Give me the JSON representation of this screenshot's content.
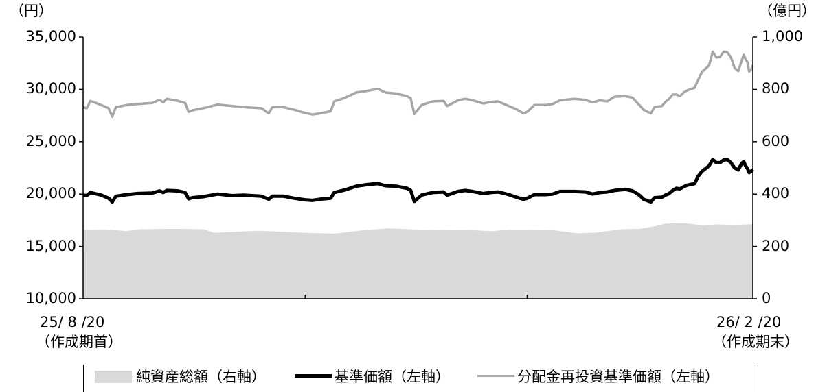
{
  "chart_data": {
    "type": "line",
    "left_unit_label": "（円）",
    "right_unit_label": "（億円）",
    "left_axis": {
      "ylim": [
        10000,
        35000
      ],
      "ticks": [
        10000,
        15000,
        20000,
        25000,
        30000,
        35000
      ],
      "tick_labels": [
        "10,000",
        "15,000",
        "20,000",
        "25,000",
        "30,000",
        "35,000"
      ]
    },
    "right_axis": {
      "ylim": [
        0,
        1000
      ],
      "ticks": [
        0,
        200,
        400,
        600,
        800,
        1000
      ],
      "tick_labels": [
        "0",
        "200",
        "400",
        "600",
        "800",
        "1,000"
      ]
    },
    "x_start": {
      "date": "25/ 8 /20",
      "note": "（作成期首）"
    },
    "x_end": {
      "date": "26/ 2 /20",
      "note": "（作成期末）"
    },
    "x_range": [
      "2025-08-20",
      "2026-02-20"
    ],
    "x_minor_ticks": [
      "2025-10-20",
      "2025-12-20"
    ],
    "grid": false,
    "legend_position": "bottom",
    "series": [
      {
        "name": "純資産総額（右軸）",
        "axis": "right",
        "style": "area",
        "color": "#d9d9d9",
        "points": [
          [
            "2025-08-20",
            262
          ],
          [
            "2025-08-25",
            265
          ],
          [
            "2025-09-01",
            259
          ],
          [
            "2025-09-05",
            266
          ],
          [
            "2025-09-15",
            267
          ],
          [
            "2025-09-22",
            266
          ],
          [
            "2025-09-25",
            252
          ],
          [
            "2025-10-01",
            256
          ],
          [
            "2025-10-07",
            260
          ],
          [
            "2025-10-14",
            256
          ],
          [
            "2025-10-20",
            252
          ],
          [
            "2025-10-28",
            249
          ],
          [
            "2025-11-05",
            262
          ],
          [
            "2025-11-12",
            269
          ],
          [
            "2025-11-17",
            266
          ],
          [
            "2025-11-23",
            262
          ],
          [
            "2025-11-28",
            263
          ],
          [
            "2025-12-05",
            262
          ],
          [
            "2025-12-10",
            258
          ],
          [
            "2025-12-15",
            264
          ],
          [
            "2025-12-20",
            264
          ],
          [
            "2025-12-27",
            262
          ],
          [
            "2026-01-03",
            250
          ],
          [
            "2026-01-08",
            253
          ],
          [
            "2026-01-15",
            266
          ],
          [
            "2026-01-20",
            267
          ],
          [
            "2026-01-24",
            277
          ],
          [
            "2026-01-27",
            287
          ],
          [
            "2026-02-01",
            289
          ],
          [
            "2026-02-06",
            281
          ],
          [
            "2026-02-10",
            284
          ],
          [
            "2026-02-15",
            282
          ],
          [
            "2026-02-20",
            285
          ]
        ]
      },
      {
        "name": "基準価額（左軸）",
        "axis": "left",
        "style": "line",
        "color": "#000000",
        "points": [
          [
            "2025-08-20",
            19900
          ],
          [
            "2025-08-21",
            19850
          ],
          [
            "2025-08-22",
            20150
          ],
          [
            "2025-08-25",
            19900
          ],
          [
            "2025-08-27",
            19600
          ],
          [
            "2025-08-28",
            19250
          ],
          [
            "2025-08-29",
            19800
          ],
          [
            "2025-09-01",
            19950
          ],
          [
            "2025-09-04",
            20050
          ],
          [
            "2025-09-08",
            20100
          ],
          [
            "2025-09-10",
            20300
          ],
          [
            "2025-09-11",
            20150
          ],
          [
            "2025-09-12",
            20350
          ],
          [
            "2025-09-15",
            20300
          ],
          [
            "2025-09-17",
            20150
          ],
          [
            "2025-09-18",
            19550
          ],
          [
            "2025-09-19",
            19650
          ],
          [
            "2025-09-22",
            19750
          ],
          [
            "2025-09-26",
            20000
          ],
          [
            "2025-09-30",
            19850
          ],
          [
            "2025-10-03",
            19900
          ],
          [
            "2025-10-08",
            19800
          ],
          [
            "2025-10-10",
            19500
          ],
          [
            "2025-10-11",
            19800
          ],
          [
            "2025-10-14",
            19800
          ],
          [
            "2025-10-17",
            19600
          ],
          [
            "2025-10-20",
            19450
          ],
          [
            "2025-10-22",
            19400
          ],
          [
            "2025-10-24",
            19500
          ],
          [
            "2025-10-27",
            19600
          ],
          [
            "2025-10-28",
            20150
          ],
          [
            "2025-10-31",
            20400
          ],
          [
            "2025-11-03",
            20750
          ],
          [
            "2025-11-06",
            20900
          ],
          [
            "2025-11-09",
            21000
          ],
          [
            "2025-11-11",
            20800
          ],
          [
            "2025-11-14",
            20750
          ],
          [
            "2025-11-17",
            20550
          ],
          [
            "2025-11-18",
            20350
          ],
          [
            "2025-11-19",
            19300
          ],
          [
            "2025-11-21",
            19900
          ],
          [
            "2025-11-24",
            20150
          ],
          [
            "2025-11-27",
            20200
          ],
          [
            "2025-11-28",
            19900
          ],
          [
            "2025-12-01",
            20250
          ],
          [
            "2025-12-03",
            20350
          ],
          [
            "2025-12-05",
            20250
          ],
          [
            "2025-12-08",
            20050
          ],
          [
            "2025-12-10",
            20150
          ],
          [
            "2025-12-12",
            20200
          ],
          [
            "2025-12-15",
            19950
          ],
          [
            "2025-12-17",
            19700
          ],
          [
            "2025-12-19",
            19500
          ],
          [
            "2025-12-20",
            19600
          ],
          [
            "2025-12-22",
            19950
          ],
          [
            "2025-12-25",
            19950
          ],
          [
            "2025-12-27",
            20000
          ],
          [
            "2025-12-29",
            20250
          ],
          [
            "2026-01-02",
            20250
          ],
          [
            "2026-01-05",
            20200
          ],
          [
            "2026-01-07",
            20000
          ],
          [
            "2026-01-09",
            20150
          ],
          [
            "2026-01-11",
            20200
          ],
          [
            "2026-01-13",
            20350
          ],
          [
            "2026-01-16",
            20450
          ],
          [
            "2026-01-18",
            20300
          ],
          [
            "2026-01-19",
            20100
          ],
          [
            "2026-01-20",
            19850
          ],
          [
            "2026-01-21",
            19500
          ],
          [
            "2026-01-23",
            19250
          ],
          [
            "2026-01-24",
            19650
          ],
          [
            "2026-01-26",
            19700
          ],
          [
            "2026-01-27",
            19900
          ],
          [
            "2026-01-28",
            20050
          ],
          [
            "2026-01-29",
            20350
          ],
          [
            "2026-01-30",
            20550
          ],
          [
            "2026-01-31",
            20500
          ],
          [
            "2026-02-01",
            20700
          ],
          [
            "2026-02-02",
            20850
          ],
          [
            "2026-02-04",
            21000
          ],
          [
            "2026-02-05",
            21700
          ],
          [
            "2026-02-06",
            22150
          ],
          [
            "2026-02-08",
            22700
          ],
          [
            "2026-02-09",
            23300
          ],
          [
            "2026-02-10",
            23000
          ],
          [
            "2026-02-11",
            23000
          ],
          [
            "2026-02-12",
            23250
          ],
          [
            "2026-02-13",
            23300
          ],
          [
            "2026-02-14",
            23000
          ],
          [
            "2026-02-15",
            22500
          ],
          [
            "2026-02-16",
            22300
          ],
          [
            "2026-02-17",
            22950
          ],
          [
            "2026-02-17T12:00",
            23100
          ],
          [
            "2026-02-18",
            22700
          ],
          [
            "2026-02-18T12:00",
            22450
          ],
          [
            "2026-02-19",
            22050
          ],
          [
            "2026-02-19T12:00",
            22150
          ],
          [
            "2026-02-20",
            22350
          ]
        ]
      },
      {
        "name": "分配金再投資基準価額（左軸）",
        "axis": "left",
        "style": "line",
        "color": "#a6a6a6",
        "points": [
          [
            "2025-08-20",
            28300
          ],
          [
            "2025-08-21",
            28200
          ],
          [
            "2025-08-22",
            28900
          ],
          [
            "2025-08-25",
            28500
          ],
          [
            "2025-08-27",
            28200
          ],
          [
            "2025-08-28",
            27400
          ],
          [
            "2025-08-29",
            28300
          ],
          [
            "2025-09-01",
            28500
          ],
          [
            "2025-09-04",
            28600
          ],
          [
            "2025-09-08",
            28700
          ],
          [
            "2025-09-10",
            29000
          ],
          [
            "2025-09-11",
            28750
          ],
          [
            "2025-09-12",
            29100
          ],
          [
            "2025-09-15",
            28900
          ],
          [
            "2025-09-17",
            28700
          ],
          [
            "2025-09-18",
            27850
          ],
          [
            "2025-09-19",
            28000
          ],
          [
            "2025-09-22",
            28200
          ],
          [
            "2025-09-26",
            28550
          ],
          [
            "2025-09-30",
            28400
          ],
          [
            "2025-10-03",
            28300
          ],
          [
            "2025-10-08",
            28200
          ],
          [
            "2025-10-10",
            27700
          ],
          [
            "2025-10-11",
            28300
          ],
          [
            "2025-10-14",
            28300
          ],
          [
            "2025-10-17",
            28050
          ],
          [
            "2025-10-20",
            27750
          ],
          [
            "2025-10-22",
            27600
          ],
          [
            "2025-10-24",
            27700
          ],
          [
            "2025-10-27",
            27900
          ],
          [
            "2025-10-28",
            28850
          ],
          [
            "2025-10-31",
            29200
          ],
          [
            "2025-11-03",
            29700
          ],
          [
            "2025-11-06",
            29850
          ],
          [
            "2025-11-09",
            30050
          ],
          [
            "2025-11-11",
            29700
          ],
          [
            "2025-11-14",
            29600
          ],
          [
            "2025-11-17",
            29350
          ],
          [
            "2025-11-18",
            29150
          ],
          [
            "2025-11-19",
            27650
          ],
          [
            "2025-11-21",
            28500
          ],
          [
            "2025-11-24",
            28850
          ],
          [
            "2025-11-27",
            28900
          ],
          [
            "2025-11-28",
            28400
          ],
          [
            "2025-12-01",
            28950
          ],
          [
            "2025-12-03",
            29100
          ],
          [
            "2025-12-05",
            28950
          ],
          [
            "2025-12-08",
            28650
          ],
          [
            "2025-12-10",
            28800
          ],
          [
            "2025-12-12",
            28850
          ],
          [
            "2025-12-15",
            28400
          ],
          [
            "2025-12-17",
            28100
          ],
          [
            "2025-12-19",
            27700
          ],
          [
            "2025-12-20",
            27850
          ],
          [
            "2025-12-22",
            28500
          ],
          [
            "2025-12-25",
            28500
          ],
          [
            "2025-12-27",
            28600
          ],
          [
            "2025-12-29",
            28950
          ],
          [
            "2026-01-02",
            29100
          ],
          [
            "2026-01-05",
            29000
          ],
          [
            "2026-01-07",
            28750
          ],
          [
            "2026-01-09",
            28950
          ],
          [
            "2026-01-11",
            28850
          ],
          [
            "2026-01-13",
            29300
          ],
          [
            "2026-01-16",
            29350
          ],
          [
            "2026-01-18",
            29200
          ],
          [
            "2026-01-19",
            28800
          ],
          [
            "2026-01-20",
            28450
          ],
          [
            "2026-01-21",
            28050
          ],
          [
            "2026-01-23",
            27700
          ],
          [
            "2026-01-24",
            28300
          ],
          [
            "2026-01-26",
            28400
          ],
          [
            "2026-01-27",
            28800
          ],
          [
            "2026-01-28",
            29100
          ],
          [
            "2026-01-29",
            29500
          ],
          [
            "2026-01-30",
            29500
          ],
          [
            "2026-01-31",
            29350
          ],
          [
            "2026-02-01",
            29700
          ],
          [
            "2026-02-02",
            29900
          ],
          [
            "2026-02-04",
            30150
          ],
          [
            "2026-02-05",
            30900
          ],
          [
            "2026-02-06",
            31650
          ],
          [
            "2026-02-08",
            32300
          ],
          [
            "2026-02-09",
            33600
          ],
          [
            "2026-02-10",
            33050
          ],
          [
            "2026-02-11",
            33100
          ],
          [
            "2026-02-12",
            33600
          ],
          [
            "2026-02-13",
            33550
          ],
          [
            "2026-02-14",
            33050
          ],
          [
            "2026-02-15",
            32050
          ],
          [
            "2026-02-16",
            31750
          ],
          [
            "2026-02-17",
            32800
          ],
          [
            "2026-02-17T12:00",
            33300
          ],
          [
            "2026-02-18",
            32900
          ],
          [
            "2026-02-18T12:00",
            32600
          ],
          [
            "2026-02-19",
            31700
          ],
          [
            "2026-02-19T12:00",
            31850
          ],
          [
            "2026-02-20",
            32300
          ]
        ]
      }
    ]
  }
}
